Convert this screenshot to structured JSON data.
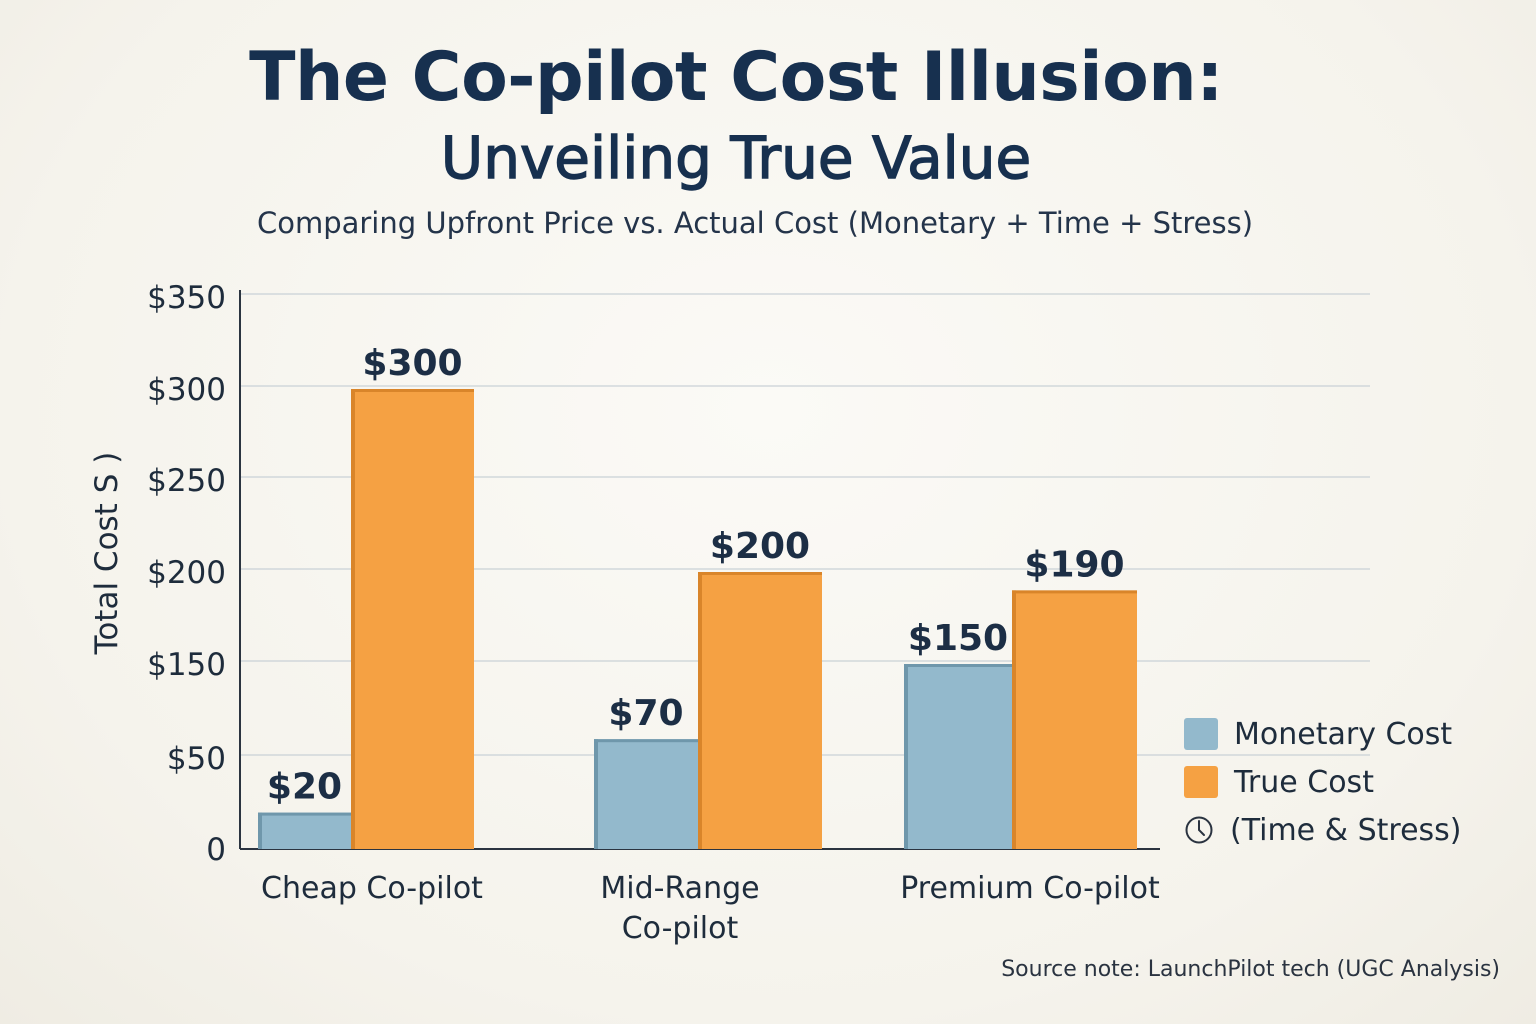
{
  "title_line1": "The Co-pilot Cost Illusion:",
  "title_line2": "Unveiling True Value",
  "subtitle": "Comparing Upfront Price vs. Actual Cost (Monetary + Time + Stress)",
  "source_note": "Source note: LaunchPilot tech (UGC Analysis)",
  "legend": {
    "monetary": "Monetary Cost",
    "true_cost": "True Cost",
    "true_cost_note": "(Time & Stress)",
    "note_icon": "clock-icon"
  },
  "colors": {
    "monetary": "#93b9cc",
    "true_cost": "#f5a143",
    "title": "#17304f"
  },
  "chart_data": {
    "type": "bar",
    "ylabel": "Total Cost S )",
    "y_ticks": [
      "$350",
      "$300",
      "$250",
      "$200",
      "$150",
      "$50",
      "0"
    ],
    "categories": [
      "Cheap Co-pilot",
      "Mid-Range Co-pilot",
      "Premium Co-pilot"
    ],
    "category_lines": [
      [
        "Cheap Co-pilot"
      ],
      [
        "Mid-Range",
        "Co-pilot"
      ],
      [
        "Premium Co-pilot"
      ]
    ],
    "series": [
      {
        "name": "Monetary Cost",
        "values": [
          20,
          70,
          150
        ],
        "labels": [
          "$20",
          "$70",
          "$150"
        ]
      },
      {
        "name": "True Cost",
        "values": [
          300,
          200,
          190
        ],
        "labels": [
          "$300",
          "$200",
          "$190"
        ]
      }
    ],
    "grid": true,
    "legend_position": "right"
  }
}
